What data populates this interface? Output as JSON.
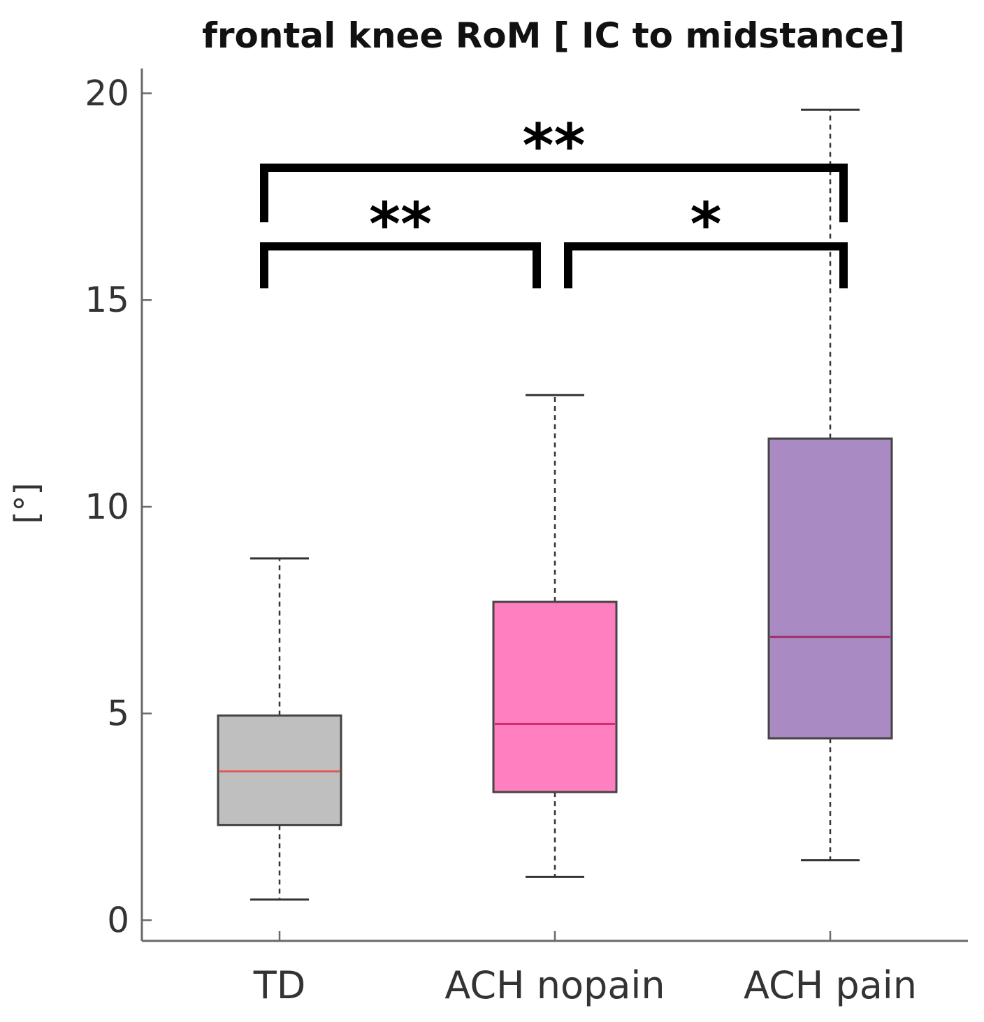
{
  "chart_data": {
    "type": "box",
    "title": "frontal knee RoM [ IC to midstance]",
    "xlabel": "",
    "ylabel": "[°]",
    "ylim": [
      -0.5,
      20.6
    ],
    "yticks": [
      0,
      5,
      10,
      15,
      20
    ],
    "ytick_labels": [
      "0",
      "5",
      "10",
      "15",
      "20"
    ],
    "categories": [
      "TD",
      "ACH nopain",
      "ACH pain"
    ],
    "boxes": [
      {
        "category": "TD",
        "whisker_low": 0.5,
        "q1": 2.3,
        "median": 3.6,
        "q3": 4.95,
        "whisker_high": 8.75,
        "fill": "#bfbfbf",
        "median_color": "#e05a5a"
      },
      {
        "category": "ACH nopain",
        "whisker_low": 1.05,
        "q1": 3.1,
        "median": 4.75,
        "q3": 7.7,
        "whisker_high": 12.7,
        "fill": "#ff80c0",
        "median_color": "#d0306a"
      },
      {
        "category": "ACH pain",
        "whisker_low": 1.45,
        "q1": 4.4,
        "median": 6.85,
        "q3": 11.65,
        "whisker_high": 19.6,
        "fill": "#a98ac2",
        "median_color": "#a0306a"
      }
    ],
    "significance": [
      {
        "from": 0,
        "to": 1,
        "label": "**",
        "y": 16.3
      },
      {
        "from": 1,
        "to": 2,
        "label": "*",
        "y": 16.3
      },
      {
        "from": 0,
        "to": 2,
        "label": "**",
        "y": 18.2
      }
    ],
    "grid": false,
    "legend": "none"
  }
}
